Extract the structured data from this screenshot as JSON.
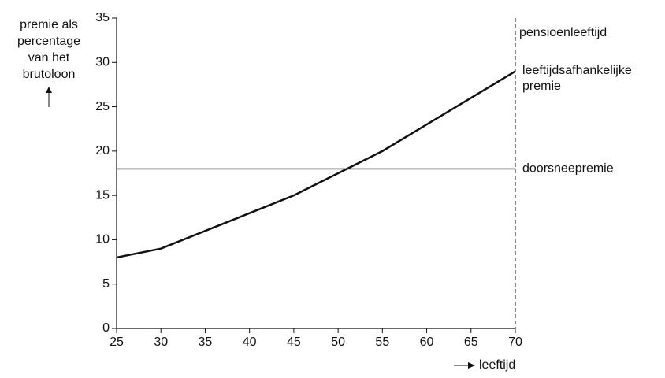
{
  "chart_data": {
    "type": "line",
    "ylabel": [
      "premie als",
      "percentage",
      "van het",
      "brutoloon"
    ],
    "xlabel": "leeftijd",
    "x": [
      25,
      30,
      35,
      40,
      45,
      50,
      55,
      60,
      65,
      70
    ],
    "series": [
      {
        "name": "leeftijdsafhankelijke premie",
        "color": "#111111",
        "values": [
          8,
          9,
          11,
          13,
          15,
          17.5,
          20,
          23,
          26,
          29
        ]
      }
    ],
    "reference_lines": [
      {
        "name": "doorsneepremie",
        "value": 18,
        "color": "#999999"
      }
    ],
    "vertical_lines": [
      {
        "name": "pensioenleeftijd",
        "value": 70,
        "color": "#111111",
        "dashed": true
      }
    ],
    "xlim": [
      25,
      70
    ],
    "xticks": [
      25,
      30,
      35,
      40,
      45,
      50,
      55,
      60,
      65,
      70
    ],
    "ylim": [
      0,
      35
    ],
    "yticks": [
      0,
      5,
      10,
      15,
      20,
      25,
      30,
      35
    ],
    "grid": false
  }
}
